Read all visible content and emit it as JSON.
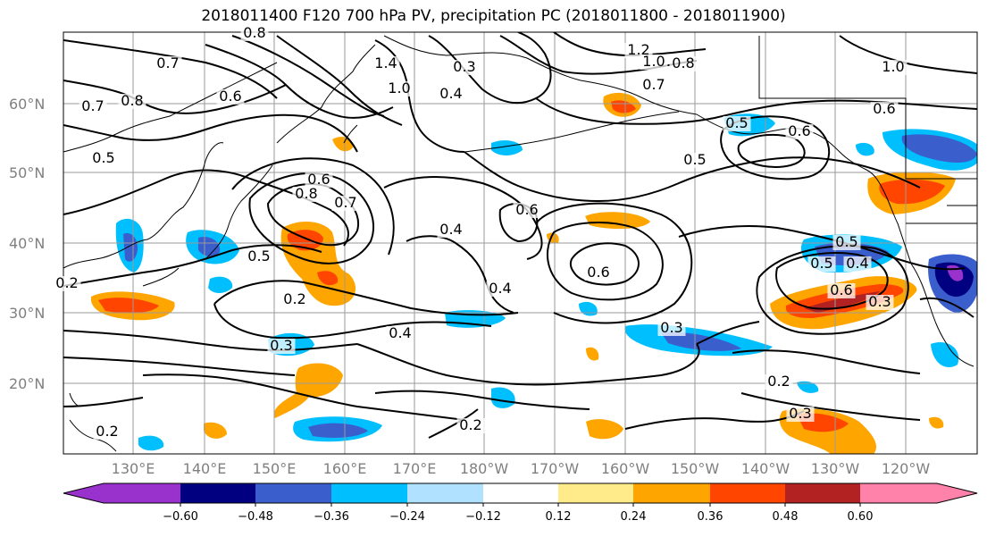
{
  "title": "2018011400 F120 700 hPa PV, precipitation PC (2018011800 - 2018011900)",
  "lat_labels": [
    "60°N",
    "50°N",
    "40°N",
    "30°N",
    "20°N"
  ],
  "lon_labels": [
    "130°E",
    "140°E",
    "150°E",
    "160°E",
    "170°E",
    "180°W",
    "170°W",
    "160°W",
    "150°W",
    "140°W",
    "130°W",
    "120°W"
  ],
  "colorbar": {
    "ticks": [
      "−0.60",
      "−0.48",
      "−0.36",
      "−0.24",
      "−0.12",
      "0.12",
      "0.24",
      "0.36",
      "0.48",
      "0.60"
    ],
    "colors": [
      "#9932cc",
      "#000080",
      "#3a5fcd",
      "#00bfff",
      "#b0e2ff",
      "#ffffff",
      "#ffeb8a",
      "#ffa500",
      "#ff4500",
      "#b22222",
      "#ff82ab"
    ]
  },
  "pv_labels": [
    "0.7",
    "0.8",
    "0.7",
    "0.8",
    "0.5",
    "0.6",
    "1.4",
    "1.0",
    "0.3",
    "0.4",
    "1.2",
    "1.0",
    "0.8",
    "0.7",
    "1.0",
    "0.6",
    "0.5",
    "0.6",
    "0.5",
    "0.6",
    "0.8",
    "0.7",
    "0.6",
    "0.4",
    "0.6",
    "0.5",
    "0.4",
    "0.5",
    "0.2",
    "0.3",
    "0.4",
    "0.3",
    "0.5",
    "0.4",
    "0.6",
    "0.3",
    "0.2",
    "0.3",
    "0.2",
    "0.2",
    "0.2"
  ]
}
